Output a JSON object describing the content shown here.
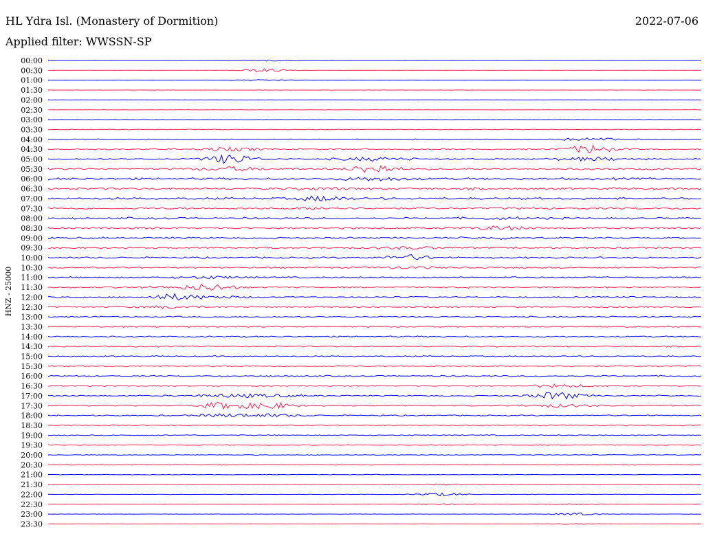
{
  "chart_data": {
    "type": "line",
    "title": "HL Ydra Isl. (Monastery of Dormition)",
    "date": "2022-07-06",
    "subtitle": "Applied filter: WWSSN-SP",
    "ylabel": "HNZ - 25000",
    "trace_colors": [
      "#0000ff",
      "#ff1f4b"
    ],
    "row_labels": [
      "00:00",
      "00:30",
      "01:00",
      "01:30",
      "02:00",
      "02:30",
      "03:00",
      "03:30",
      "04:00",
      "04:30",
      "05:00",
      "05:30",
      "06:00",
      "06:30",
      "07:00",
      "07:30",
      "08:00",
      "08:30",
      "09:00",
      "09:30",
      "10:00",
      "10:30",
      "11:00",
      "11:30",
      "12:00",
      "12:30",
      "13:00",
      "13:30",
      "14:00",
      "14:30",
      "15:00",
      "15:30",
      "16:00",
      "16:30",
      "17:00",
      "17:30",
      "18:00",
      "18:30",
      "19:00",
      "19:30",
      "20:00",
      "20:30",
      "21:00",
      "21:30",
      "22:00",
      "22:30",
      "23:00",
      "23:30"
    ],
    "noise_level": [
      0.02,
      0.03,
      0.03,
      0.04,
      0.06,
      0.08,
      0.1,
      0.13,
      0.17,
      0.25,
      0.32,
      0.4,
      0.45,
      0.45,
      0.45,
      0.42,
      0.4,
      0.38,
      0.38,
      0.36,
      0.34,
      0.33,
      0.32,
      0.31,
      0.3,
      0.3,
      0.28,
      0.28,
      0.28,
      0.27,
      0.27,
      0.27,
      0.27,
      0.26,
      0.26,
      0.25,
      0.23,
      0.22,
      0.2,
      0.18,
      0.16,
      0.14,
      0.12,
      0.1,
      0.08,
      0.06,
      0.05,
      0.04
    ],
    "events": [
      {
        "start": "05:00",
        "offset": 0.28,
        "strength": 0.9
      },
      {
        "start": "00:30",
        "offset": 0.33,
        "strength": 0.35
      },
      {
        "start": "12:00",
        "offset": 0.19,
        "strength": 0.55
      },
      {
        "start": "11:30",
        "offset": 0.25,
        "strength": 0.6
      },
      {
        "start": "17:30",
        "offset": 0.34,
        "strength": 0.65
      },
      {
        "start": "17:30",
        "offset": 0.27,
        "strength": 0.7
      },
      {
        "start": "17:00",
        "offset": 0.78,
        "strength": 0.75
      },
      {
        "start": "04:30",
        "offset": 0.83,
        "strength": 0.8
      },
      {
        "start": "05:30",
        "offset": 0.5,
        "strength": 0.85
      },
      {
        "start": "07:00",
        "offset": 0.42,
        "strength": 0.45
      },
      {
        "start": "08:30",
        "offset": 0.69,
        "strength": 0.4
      },
      {
        "start": "10:00",
        "offset": 0.55,
        "strength": 0.5
      },
      {
        "start": "22:00",
        "offset": 0.6,
        "strength": 0.3
      },
      {
        "start": "23:00",
        "offset": 0.81,
        "strength": 0.25
      }
    ]
  }
}
